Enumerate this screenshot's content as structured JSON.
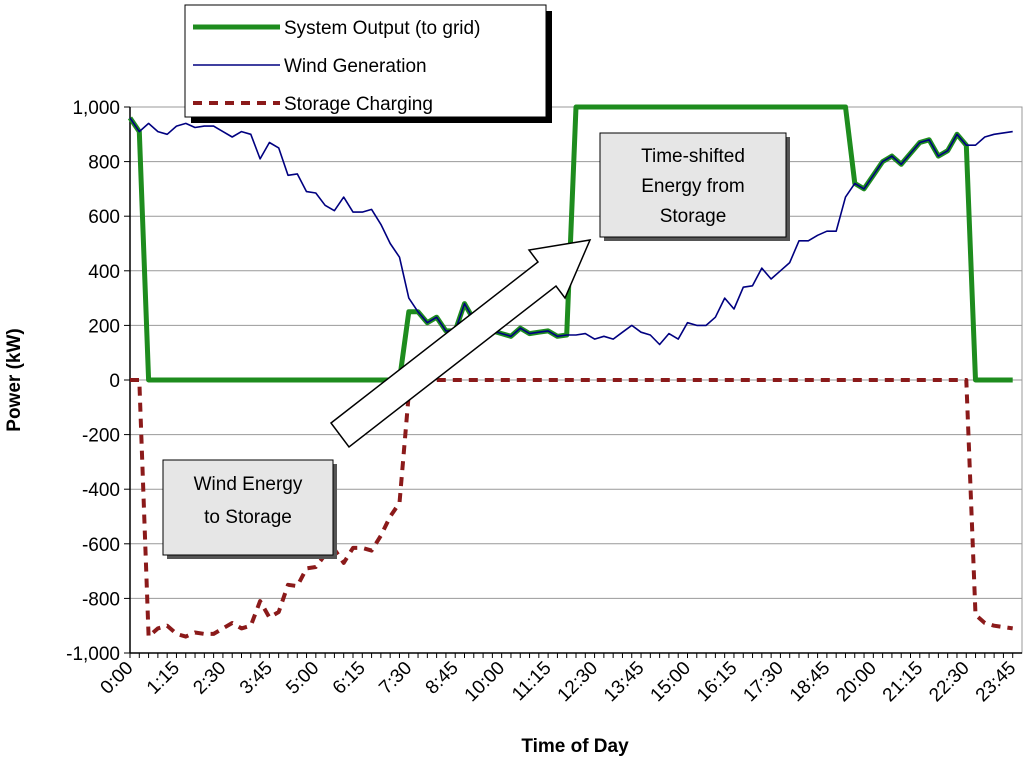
{
  "chart_data": {
    "type": "line",
    "x_label": "Time of Day",
    "y_label": "Power (kW)",
    "categories": [
      "0:00",
      null,
      null,
      null,
      null,
      "1:15",
      null,
      null,
      null,
      null,
      "2:30",
      null,
      null,
      null,
      null,
      "3:45",
      null,
      null,
      null,
      null,
      "5:00",
      null,
      null,
      null,
      null,
      "6:15",
      null,
      null,
      null,
      null,
      "7:30",
      null,
      null,
      null,
      null,
      "8:45",
      null,
      null,
      null,
      null,
      "10:00",
      null,
      null,
      null,
      null,
      "11:15",
      null,
      null,
      null,
      null,
      "12:30",
      null,
      null,
      null,
      null,
      "13:45",
      null,
      null,
      null,
      null,
      "15:00",
      null,
      null,
      null,
      null,
      "16:15",
      null,
      null,
      null,
      null,
      "17:30",
      null,
      null,
      null,
      null,
      "18:45",
      null,
      null,
      null,
      null,
      "20:00",
      null,
      null,
      null,
      null,
      "21:15",
      null,
      null,
      null,
      null,
      "22:30",
      null,
      null,
      null,
      null,
      "23:45"
    ],
    "series": [
      {
        "name": "System Output (to grid)",
        "color": "#1e8c1e",
        "width": 5,
        "dash": false,
        "values": [
          960,
          910,
          0,
          0,
          0,
          0,
          0,
          0,
          0,
          0,
          0,
          0,
          0,
          0,
          0,
          0,
          0,
          0,
          0,
          0,
          0,
          0,
          0,
          0,
          0,
          0,
          0,
          0,
          0,
          0,
          250,
          250,
          210,
          230,
          180,
          180,
          280,
          220,
          190,
          180,
          170,
          160,
          190,
          170,
          175,
          180,
          160,
          165,
          1000,
          1000,
          1000,
          1000,
          1000,
          1000,
          1000,
          1000,
          1000,
          1000,
          1000,
          1000,
          1000,
          1000,
          1000,
          1000,
          1000,
          1000,
          1000,
          1000,
          1000,
          1000,
          1000,
          1000,
          1000,
          1000,
          1000,
          1000,
          1000,
          1000,
          720,
          700,
          750,
          800,
          820,
          790,
          830,
          870,
          880,
          820,
          840,
          900,
          860,
          0,
          0,
          0,
          0,
          0
        ]
      },
      {
        "name": "Wind Generation",
        "color": "#000080",
        "width": 1.6,
        "dash": false,
        "values": [
          960,
          910,
          940,
          910,
          900,
          930,
          940,
          925,
          930,
          930,
          910,
          890,
          910,
          900,
          810,
          870,
          850,
          750,
          755,
          690,
          685,
          640,
          620,
          670,
          615,
          615,
          625,
          570,
          500,
          450,
          300,
          250,
          210,
          230,
          180,
          180,
          280,
          220,
          190,
          180,
          170,
          160,
          190,
          170,
          175,
          180,
          160,
          165,
          165,
          170,
          150,
          160,
          150,
          175,
          200,
          175,
          165,
          130,
          170,
          150,
          210,
          200,
          200,
          230,
          300,
          260,
          340,
          345,
          410,
          370,
          400,
          430,
          510,
          510,
          530,
          545,
          545,
          670,
          720,
          700,
          750,
          800,
          820,
          790,
          830,
          870,
          880,
          820,
          840,
          900,
          860,
          860,
          890,
          900,
          905,
          910
        ]
      },
      {
        "name": "Storage Charging",
        "color": "#8b1a1a",
        "width": 4,
        "dash": true,
        "values": [
          0,
          0,
          -940,
          -910,
          -900,
          -930,
          -940,
          -925,
          -930,
          -930,
          -910,
          -890,
          -910,
          -900,
          -810,
          -870,
          -850,
          -750,
          -755,
          -690,
          -685,
          -640,
          -620,
          -670,
          -615,
          -615,
          -625,
          -570,
          -500,
          -450,
          -50,
          0,
          0,
          0,
          0,
          0,
          0,
          0,
          0,
          0,
          0,
          0,
          0,
          0,
          0,
          0,
          0,
          0,
          0,
          0,
          0,
          0,
          0,
          0,
          0,
          0,
          0,
          0,
          0,
          0,
          0,
          0,
          0,
          0,
          0,
          0,
          0,
          0,
          0,
          0,
          0,
          0,
          0,
          0,
          0,
          0,
          0,
          0,
          0,
          0,
          0,
          0,
          0,
          0,
          0,
          0,
          0,
          0,
          0,
          0,
          0,
          -860,
          -890,
          -900,
          -905,
          -910
        ]
      }
    ],
    "ylim": [
      -1000,
      1000
    ],
    "yticks": [
      {
        "value": -1000,
        "label": "-1,000"
      },
      -800,
      -600,
      -400,
      -200,
      0,
      200,
      400,
      600,
      800,
      {
        "value": 1000,
        "label": "1,000"
      }
    ],
    "grid": true,
    "legend": "top-left",
    "annotations": [
      {
        "lines": [
          "Wind Energy",
          "to Storage"
        ]
      },
      {
        "lines": [
          "Time-shifted",
          "Energy from",
          "Storage"
        ]
      }
    ]
  }
}
